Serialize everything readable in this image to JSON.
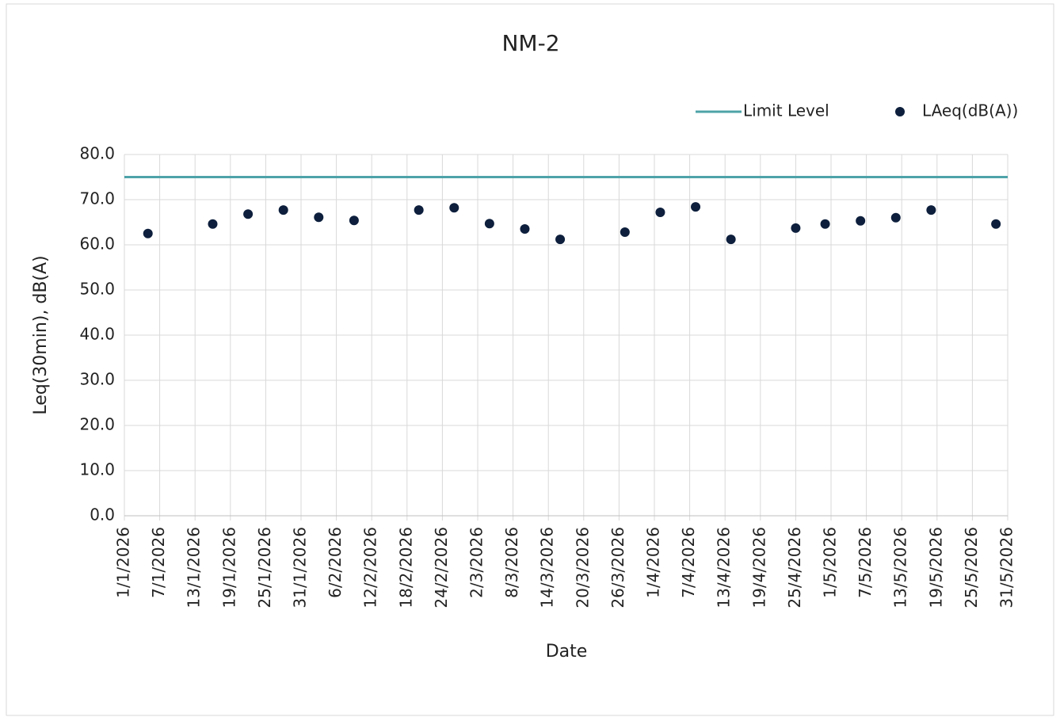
{
  "chart_data": {
    "type": "scatter",
    "title": "NM-2",
    "x_label": "Date",
    "y_label": "Leq(30min), dB(A)",
    "x": [
      "2026-01-05",
      "2026-01-16",
      "2026-01-22",
      "2026-01-28",
      "2026-02-03",
      "2026-02-09",
      "2026-02-20",
      "2026-02-26",
      "2026-03-04",
      "2026-03-10",
      "2026-03-16",
      "2026-03-27",
      "2026-04-02",
      "2026-04-08",
      "2026-04-14",
      "2026-04-25",
      "2026-04-30",
      "2026-05-06",
      "2026-05-12",
      "2026-05-18",
      "2026-05-29"
    ],
    "series": [
      {
        "name": "Limit Level",
        "type": "line",
        "color": "#4ea3a8",
        "x": [
          "2026-01-01",
          "2026-05-31"
        ],
        "values": [
          75,
          75
        ]
      },
      {
        "name": "LAeq(dB(A))",
        "type": "scatter",
        "color": "#0d1f3c",
        "values": [
          62.5,
          64.6,
          66.8,
          67.7,
          66.1,
          65.4,
          67.7,
          68.2,
          64.7,
          63.5,
          61.2,
          62.8,
          67.2,
          68.4,
          61.2,
          63.7,
          64.6,
          65.3,
          66.0,
          67.7,
          64.6
        ]
      }
    ],
    "xlim": [
      "2026-01-01",
      "2026-05-31"
    ],
    "xticks": [
      {
        "value": "2026-01-01",
        "label": "1/1/2026"
      },
      {
        "value": "2026-01-07",
        "label": "7/1/2026"
      },
      {
        "value": "2026-01-13",
        "label": "13/1/2026"
      },
      {
        "value": "2026-01-19",
        "label": "19/1/2026"
      },
      {
        "value": "2026-01-25",
        "label": "25/1/2026"
      },
      {
        "value": "2026-01-31",
        "label": "31/1/2026"
      },
      {
        "value": "2026-02-06",
        "label": "6/2/2026"
      },
      {
        "value": "2026-02-12",
        "label": "12/2/2026"
      },
      {
        "value": "2026-02-18",
        "label": "18/2/2026"
      },
      {
        "value": "2026-02-24",
        "label": "24/2/2026"
      },
      {
        "value": "2026-03-02",
        "label": "2/3/2026"
      },
      {
        "value": "2026-03-08",
        "label": "8/3/2026"
      },
      {
        "value": "2026-03-14",
        "label": "14/3/2026"
      },
      {
        "value": "2026-03-20",
        "label": "20/3/2026"
      },
      {
        "value": "2026-03-26",
        "label": "26/3/2026"
      },
      {
        "value": "2026-04-01",
        "label": "1/4/2026"
      },
      {
        "value": "2026-04-07",
        "label": "7/4/2026"
      },
      {
        "value": "2026-04-13",
        "label": "13/4/2026"
      },
      {
        "value": "2026-04-19",
        "label": "19/4/2026"
      },
      {
        "value": "2026-04-25",
        "label": "25/4/2026"
      },
      {
        "value": "2026-05-01",
        "label": "1/5/2026"
      },
      {
        "value": "2026-05-07",
        "label": "7/5/2026"
      },
      {
        "value": "2026-05-13",
        "label": "13/5/2026"
      },
      {
        "value": "2026-05-19",
        "label": "19/5/2026"
      },
      {
        "value": "2026-05-25",
        "label": "25/5/2026"
      },
      {
        "value": "2026-05-31",
        "label": "31/5/2026"
      }
    ],
    "ylim": [
      0,
      80
    ],
    "yticks": [
      {
        "value": 0,
        "label": "0.0"
      },
      {
        "value": 10,
        "label": "10.0"
      },
      {
        "value": 20,
        "label": "20.0"
      },
      {
        "value": 30,
        "label": "30.0"
      },
      {
        "value": 40,
        "label": "40.0"
      },
      {
        "value": 50,
        "label": "50.0"
      },
      {
        "value": 60,
        "label": "60.0"
      },
      {
        "value": 70,
        "label": "70.0"
      },
      {
        "value": 80,
        "label": "80.0"
      }
    ],
    "grid": true,
    "legend": "top-right"
  }
}
